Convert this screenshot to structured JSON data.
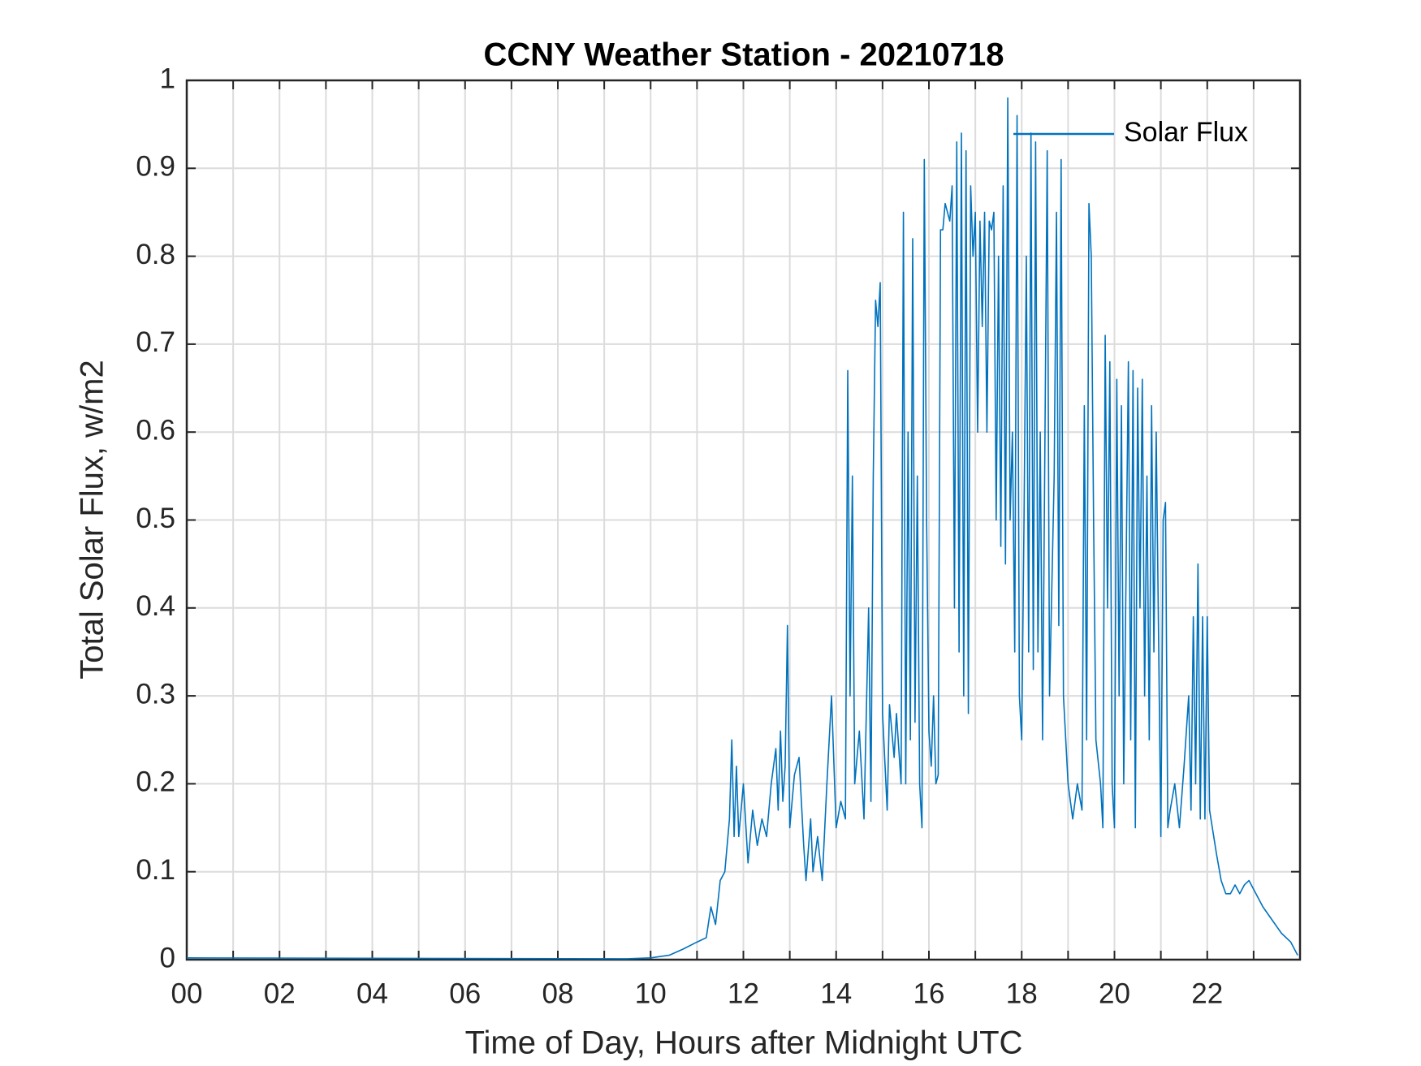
{
  "chart_data": {
    "type": "line",
    "title": "CCNY Weather Station - 20210718",
    "xlabel": "Time of Day, Hours after Midnight UTC",
    "ylabel": "Total Solar Flux, w/m2",
    "x": [
      0,
      9.5,
      10,
      10.4,
      10.7,
      11,
      11.2,
      11.3,
      11.4,
      11.5,
      11.6,
      11.7,
      11.75,
      11.8,
      11.85,
      11.9,
      12,
      12.1,
      12.2,
      12.3,
      12.4,
      12.5,
      12.6,
      12.7,
      12.75,
      12.8,
      12.85,
      12.9,
      12.95,
      13,
      13.1,
      13.2,
      13.3,
      13.35,
      13.45,
      13.5,
      13.6,
      13.7,
      13.8,
      13.9,
      14,
      14.1,
      14.2,
      14.25,
      14.3,
      14.35,
      14.4,
      14.5,
      14.6,
      14.7,
      14.75,
      14.8,
      14.85,
      14.9,
      14.95,
      15,
      15.1,
      15.15,
      15.25,
      15.3,
      15.4,
      15.45,
      15.5,
      15.55,
      15.6,
      15.65,
      15.7,
      15.75,
      15.8,
      15.85,
      15.9,
      15.95,
      16,
      16.05,
      16.1,
      16.15,
      16.2,
      16.25,
      16.3,
      16.35,
      16.45,
      16.5,
      16.55,
      16.6,
      16.65,
      16.7,
      16.75,
      16.8,
      16.85,
      16.9,
      16.95,
      17,
      17.05,
      17.1,
      17.15,
      17.2,
      17.25,
      17.3,
      17.35,
      17.4,
      17.45,
      17.5,
      17.55,
      17.6,
      17.65,
      17.7,
      17.75,
      17.8,
      17.85,
      17.9,
      17.95,
      18,
      18.05,
      18.1,
      18.15,
      18.2,
      18.25,
      18.3,
      18.35,
      18.4,
      18.45,
      18.55,
      18.6,
      18.7,
      18.75,
      18.8,
      18.85,
      18.9,
      19,
      19.1,
      19.2,
      19.3,
      19.35,
      19.4,
      19.45,
      19.5,
      19.55,
      19.6,
      19.7,
      19.75,
      19.8,
      19.85,
      19.9,
      19.95,
      20,
      20.05,
      20.1,
      20.15,
      20.2,
      20.3,
      20.35,
      20.4,
      20.45,
      20.5,
      20.55,
      20.6,
      20.65,
      20.7,
      20.75,
      20.8,
      20.85,
      20.9,
      21,
      21.05,
      21.1,
      21.15,
      21.2,
      21.3,
      21.4,
      21.5,
      21.6,
      21.65,
      21.7,
      21.75,
      21.8,
      21.85,
      21.9,
      21.95,
      22,
      22.05,
      22.2,
      22.3,
      22.4,
      22.5,
      22.6,
      22.7,
      22.8,
      22.9,
      23,
      23.2,
      23.4,
      23.6,
      23.8,
      23.95
    ],
    "series": [
      {
        "name": "Solar Flux",
        "color": "#0072bd",
        "values": [
          0.002,
          0.001,
          0.002,
          0.005,
          0.012,
          0.02,
          0.025,
          0.06,
          0.04,
          0.09,
          0.1,
          0.16,
          0.25,
          0.14,
          0.22,
          0.14,
          0.2,
          0.11,
          0.17,
          0.13,
          0.16,
          0.14,
          0.2,
          0.24,
          0.17,
          0.26,
          0.18,
          0.22,
          0.38,
          0.15,
          0.21,
          0.23,
          0.13,
          0.09,
          0.16,
          0.1,
          0.14,
          0.09,
          0.2,
          0.3,
          0.15,
          0.18,
          0.16,
          0.67,
          0.3,
          0.55,
          0.2,
          0.26,
          0.16,
          0.4,
          0.18,
          0.55,
          0.75,
          0.72,
          0.77,
          0.28,
          0.17,
          0.29,
          0.23,
          0.28,
          0.2,
          0.85,
          0.2,
          0.6,
          0.25,
          0.82,
          0.27,
          0.55,
          0.2,
          0.15,
          0.91,
          0.5,
          0.26,
          0.22,
          0.3,
          0.2,
          0.21,
          0.83,
          0.83,
          0.86,
          0.84,
          0.88,
          0.4,
          0.93,
          0.35,
          0.94,
          0.3,
          0.92,
          0.28,
          0.88,
          0.8,
          0.85,
          0.6,
          0.84,
          0.72,
          0.85,
          0.6,
          0.84,
          0.83,
          0.85,
          0.5,
          0.8,
          0.47,
          0.88,
          0.45,
          0.98,
          0.5,
          0.6,
          0.35,
          0.96,
          0.3,
          0.25,
          0.5,
          0.8,
          0.35,
          0.94,
          0.33,
          0.93,
          0.35,
          0.6,
          0.25,
          0.92,
          0.3,
          0.55,
          0.85,
          0.38,
          0.91,
          0.3,
          0.2,
          0.16,
          0.2,
          0.17,
          0.63,
          0.25,
          0.86,
          0.8,
          0.5,
          0.25,
          0.2,
          0.15,
          0.71,
          0.4,
          0.68,
          0.2,
          0.15,
          0.66,
          0.3,
          0.63,
          0.2,
          0.68,
          0.25,
          0.67,
          0.15,
          0.65,
          0.4,
          0.66,
          0.3,
          0.55,
          0.25,
          0.63,
          0.35,
          0.6,
          0.14,
          0.5,
          0.52,
          0.15,
          0.17,
          0.2,
          0.15,
          0.22,
          0.3,
          0.17,
          0.39,
          0.2,
          0.45,
          0.16,
          0.39,
          0.16,
          0.39,
          0.17,
          0.12,
          0.09,
          0.075,
          0.075,
          0.085,
          0.075,
          0.085,
          0.09,
          0.08,
          0.06,
          0.045,
          0.03,
          0.02,
          0.005
        ]
      }
    ],
    "xlim": [
      0,
      24
    ],
    "xticks": [
      {
        "value": 0,
        "label": "00"
      },
      {
        "value": 2,
        "label": "02"
      },
      {
        "value": 4,
        "label": "04"
      },
      {
        "value": 6,
        "label": "06"
      },
      {
        "value": 8,
        "label": "08"
      },
      {
        "value": 10,
        "label": "10"
      },
      {
        "value": 12,
        "label": "12"
      },
      {
        "value": 14,
        "label": "14"
      },
      {
        "value": 16,
        "label": "16"
      },
      {
        "value": 18,
        "label": "18"
      },
      {
        "value": 20,
        "label": "20"
      },
      {
        "value": 22,
        "label": "22"
      }
    ],
    "xminorticks": [
      1,
      3,
      5,
      7,
      9,
      11,
      13,
      15,
      17,
      19,
      21,
      23
    ],
    "ylim": [
      0,
      1
    ],
    "yticks": [
      0,
      0.1,
      0.2,
      0.3,
      0.4,
      0.5,
      0.6,
      0.7,
      0.8,
      0.9,
      1
    ],
    "grid": true,
    "legend": "northeast"
  }
}
